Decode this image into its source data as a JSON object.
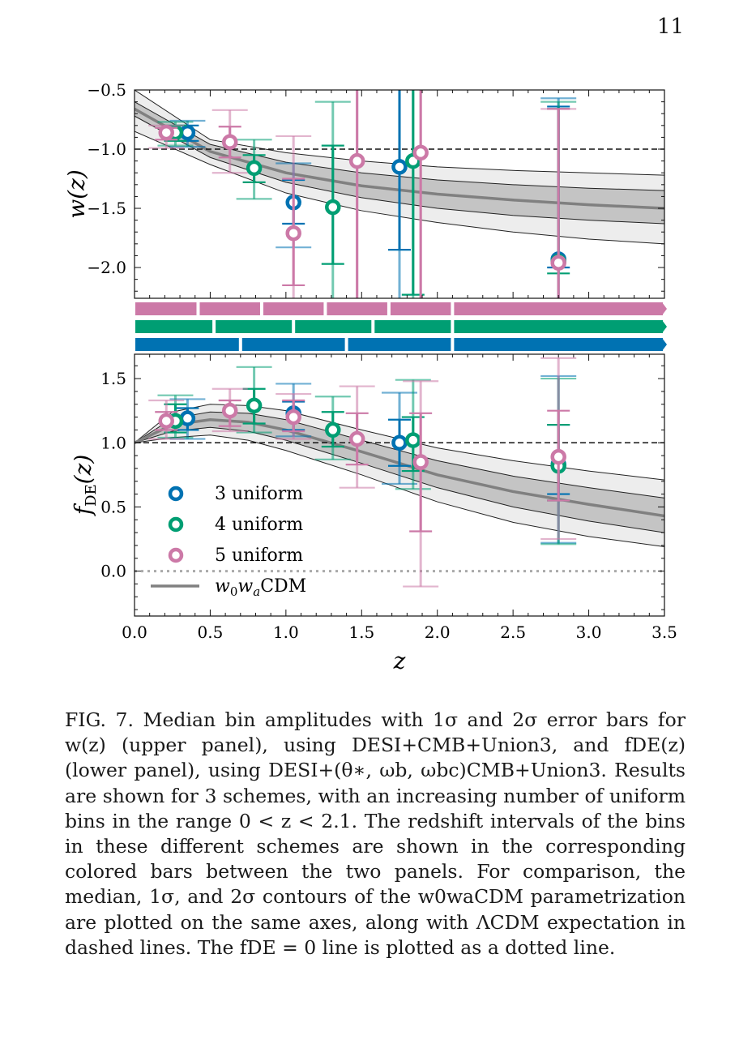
{
  "page_number": "11",
  "colors": {
    "3 uniform": "#0072b2",
    "4 uniform": "#009e73",
    "5 uniform": "#cc79a7",
    "band_median": "#808080"
  },
  "chart_data": [
    {
      "type": "scatter",
      "panel": "upper",
      "ylabel": "w(z)",
      "xlim": [
        0,
        3.5
      ],
      "ylim": [
        -2.26,
        -0.5
      ],
      "yticks": [
        -0.5,
        -1.0,
        -1.5,
        -2.0
      ],
      "ytick_labels": [
        "−0.5",
        "−1.0",
        "−1.5",
        "−2.0"
      ],
      "reference_line": {
        "value": -1.0,
        "style": "dashed"
      },
      "band": {
        "z": [
          0,
          0.5,
          1.0,
          1.5,
          2.0,
          2.5,
          3.0,
          3.5
        ],
        "median": [
          -0.66,
          -1.02,
          -1.2,
          -1.31,
          -1.38,
          -1.43,
          -1.47,
          -1.5
        ],
        "lo1": [
          -0.72,
          -1.07,
          -1.28,
          -1.41,
          -1.5,
          -1.56,
          -1.6,
          -1.63
        ],
        "hi1": [
          -0.6,
          -0.96,
          -1.11,
          -1.2,
          -1.26,
          -1.3,
          -1.33,
          -1.35
        ],
        "lo2": [
          -0.85,
          -1.13,
          -1.37,
          -1.52,
          -1.62,
          -1.7,
          -1.76,
          -1.8
        ],
        "hi2": [
          -0.5,
          -0.92,
          -1.03,
          -1.1,
          -1.15,
          -1.18,
          -1.2,
          -1.22
        ]
      },
      "series": [
        {
          "name": "3 uniform",
          "points": [
            {
              "z": 0.35,
              "y": -0.86,
              "e1": [
                -0.93,
                -0.8
              ],
              "e2": [
                -0.98,
                -0.76
              ]
            },
            {
              "z": 1.05,
              "y": -1.45,
              "e1": [
                -1.63,
                -1.26
              ],
              "e2": [
                -1.83,
                -1.12
              ]
            },
            {
              "z": 1.75,
              "y": -1.15,
              "e1": [
                -1.85,
                -0.5
              ],
              "e2": [
                -2.26,
                -0.5
              ]
            },
            {
              "z": 2.8,
              "y": -1.93,
              "e1": [
                -2.0,
                -0.64
              ],
              "e2": [
                -2.26,
                -0.57
              ]
            }
          ]
        },
        {
          "name": "4 uniform",
          "points": [
            {
              "z": 0.27,
              "y": -0.86,
              "e1": [
                -0.93,
                -0.8
              ],
              "e2": [
                -0.97,
                -0.77
              ]
            },
            {
              "z": 0.79,
              "y": -1.16,
              "e1": [
                -1.28,
                -1.05
              ],
              "e2": [
                -1.42,
                -0.92
              ]
            },
            {
              "z": 1.31,
              "y": -1.49,
              "e1": [
                -1.97,
                -0.97
              ],
              "e2": [
                -2.26,
                -0.6
              ]
            },
            {
              "z": 1.84,
              "y": -1.1,
              "e1": [
                -2.23,
                -0.5
              ],
              "e2": [
                -2.26,
                -0.5
              ]
            },
            {
              "z": 2.8,
              "y": -1.95,
              "e1": [
                -2.05,
                -0.66
              ],
              "e2": [
                -2.26,
                -0.6
              ]
            }
          ]
        },
        {
          "name": "5 uniform",
          "points": [
            {
              "z": 0.21,
              "y": -0.86,
              "e1": [
                -0.92,
                -0.82
              ],
              "e2": [
                -0.99,
                -0.8
              ]
            },
            {
              "z": 0.63,
              "y": -0.94,
              "e1": [
                -1.07,
                -0.81
              ],
              "e2": [
                -1.2,
                -0.67
              ]
            },
            {
              "z": 1.05,
              "y": -1.71,
              "e1": [
                -2.15,
                -1.25
              ],
              "e2": [
                -2.26,
                -0.89
              ]
            },
            {
              "z": 1.47,
              "y": -1.1,
              "e1": [
                -2.26,
                -0.5
              ],
              "e2": [
                -2.26,
                -0.5
              ]
            },
            {
              "z": 1.89,
              "y": -1.03,
              "e1": [
                -2.26,
                -0.5
              ],
              "e2": [
                -2.26,
                -0.5
              ]
            },
            {
              "z": 2.8,
              "y": -1.96,
              "e1": [
                -2.26,
                -0.66
              ],
              "e2": [
                -2.26,
                -0.66
              ]
            }
          ]
        }
      ]
    },
    {
      "type": "scatter",
      "panel": "lower",
      "xlabel": "z",
      "ylabel": "fDE(z)",
      "xlim": [
        0,
        3.5
      ],
      "ylim": [
        -0.35,
        1.69
      ],
      "xticks": [
        0.0,
        0.5,
        1.0,
        1.5,
        2.0,
        2.5,
        3.0,
        3.5
      ],
      "xtick_labels": [
        "0.0",
        "0.5",
        "1.0",
        "1.5",
        "2.0",
        "2.5",
        "3.0",
        "3.5"
      ],
      "yticks": [
        0.0,
        0.5,
        1.0,
        1.5
      ],
      "ytick_labels": [
        "0.0",
        "0.5",
        "1.0",
        "1.5"
      ],
      "reference_line": {
        "value": 1.0,
        "style": "dashed"
      },
      "zero_line": {
        "value": 0.0,
        "style": "dotted"
      },
      "band": {
        "z": [
          0,
          0.25,
          0.5,
          0.75,
          1.0,
          1.5,
          2.0,
          2.5,
          3.0,
          3.5
        ],
        "median": [
          1.0,
          1.14,
          1.18,
          1.16,
          1.1,
          0.93,
          0.75,
          0.62,
          0.52,
          0.43
        ],
        "lo1": [
          1.0,
          1.09,
          1.12,
          1.09,
          1.02,
          0.84,
          0.65,
          0.5,
          0.39,
          0.3
        ],
        "hi1": [
          1.0,
          1.19,
          1.24,
          1.23,
          1.18,
          1.02,
          0.86,
          0.74,
          0.65,
          0.57
        ],
        "lo2": [
          1.0,
          1.04,
          1.06,
          1.02,
          0.94,
          0.75,
          0.54,
          0.38,
          0.27,
          0.19
        ],
        "hi2": [
          1.0,
          1.24,
          1.3,
          1.29,
          1.25,
          1.1,
          0.96,
          0.86,
          0.78,
          0.71
        ]
      },
      "series": [
        {
          "name": "3 uniform",
          "points": [
            {
              "z": 0.35,
              "y": 1.19,
              "e1": [
                1.1,
                1.27
              ],
              "e2": [
                1.03,
                1.34
              ]
            },
            {
              "z": 1.05,
              "y": 1.23,
              "e1": [
                1.1,
                1.32
              ],
              "e2": [
                1.05,
                1.46
              ]
            },
            {
              "z": 1.75,
              "y": 1.0,
              "e1": [
                0.82,
                1.18
              ],
              "e2": [
                0.68,
                1.39
              ]
            },
            {
              "z": 2.8,
              "y": 0.83,
              "e1": [
                0.6,
                1.14
              ],
              "e2": [
                0.22,
                1.52
              ]
            }
          ]
        },
        {
          "name": "4 uniform",
          "points": [
            {
              "z": 0.27,
              "y": 1.17,
              "e1": [
                1.08,
                1.3
              ],
              "e2": [
                1.04,
                1.37
              ]
            },
            {
              "z": 0.79,
              "y": 1.29,
              "e1": [
                1.15,
                1.42
              ],
              "e2": [
                1.08,
                1.59
              ]
            },
            {
              "z": 1.31,
              "y": 1.1,
              "e1": [
                0.97,
                1.24
              ],
              "e2": [
                0.87,
                1.36
              ]
            },
            {
              "z": 1.84,
              "y": 1.02,
              "e1": [
                0.78,
                1.2
              ],
              "e2": [
                0.64,
                1.49
              ]
            },
            {
              "z": 2.8,
              "y": 0.82,
              "e1": [
                0.55,
                1.14
              ],
              "e2": [
                0.21,
                1.5
              ]
            }
          ]
        },
        {
          "name": "5 uniform",
          "points": [
            {
              "z": 0.21,
              "y": 1.17,
              "e1": [
                1.1,
                1.24
              ],
              "e2": [
                1.03,
                1.33
              ]
            },
            {
              "z": 0.63,
              "y": 1.25,
              "e1": [
                1.13,
                1.33
              ],
              "e2": [
                1.09,
                1.42
              ]
            },
            {
              "z": 1.05,
              "y": 1.2,
              "e1": [
                1.09,
                1.33
              ],
              "e2": [
                1.03,
                1.38
              ]
            },
            {
              "z": 1.47,
              "y": 1.03,
              "e1": [
                0.83,
                1.23
              ],
              "e2": [
                0.65,
                1.44
              ]
            },
            {
              "z": 1.89,
              "y": 0.85,
              "e1": [
                0.31,
                1.23
              ],
              "e2": [
                -0.12,
                1.48
              ]
            },
            {
              "z": 2.8,
              "y": 0.89,
              "e1": [
                0.55,
                1.25
              ],
              "e2": [
                0.25,
                1.66
              ]
            }
          ]
        }
      ],
      "legend": {
        "placement": "lower-left",
        "entries": [
          "3 uniform",
          "4 uniform",
          "5 uniform",
          "w0waCDM"
        ]
      }
    }
  ],
  "bin_bars": [
    {
      "name": "5 uniform",
      "edges": [
        0,
        0.42,
        0.84,
        1.26,
        1.68,
        2.1,
        3.5
      ]
    },
    {
      "name": "4 uniform",
      "edges": [
        0,
        0.525,
        1.05,
        1.575,
        2.1,
        3.5
      ]
    },
    {
      "name": "3 uniform",
      "edges": [
        0,
        0.7,
        1.4,
        2.1,
        3.5
      ]
    }
  ],
  "caption": "FIG. 7. Median bin amplitudes with 1σ and 2σ error bars for w(z) (upper panel), using DESI+CMB+Union3, and fDE(z) (lower panel), using DESI+(θ∗, ωb, ωbc)CMB+Union3. Results are shown for 3 schemes, with an increasing number of uniform bins in the range 0 < z < 2.1. The redshift intervals of the bins in these different schemes are shown in the corresponding colored bars between the two panels. For comparison, the median, 1σ, and 2σ contours of the w0waCDM parametrization are plotted on the same axes, along with ΛCDM expectation in dashed lines. The fDE = 0 line is plotted as a dotted line."
}
